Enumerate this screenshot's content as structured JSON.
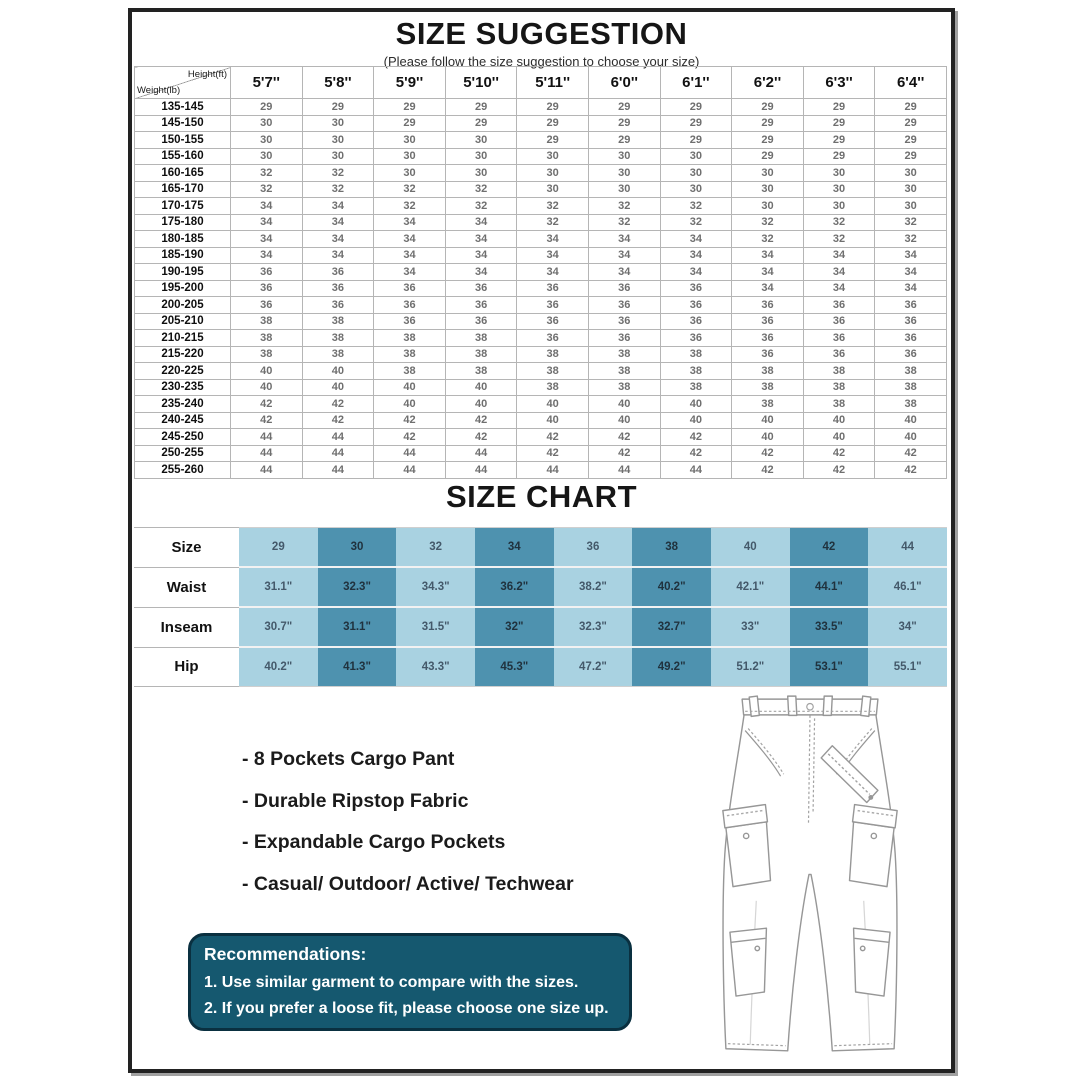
{
  "page": {
    "title": "SIZE SUGGESTION",
    "subtitle": "(Please follow the size suggestion to choose your size)"
  },
  "size_suggestion": {
    "corner_top": "Height(ft)",
    "corner_bottom": "Weight(lb)",
    "height_columns": [
      "5'7''",
      "5'8''",
      "5'9''",
      "5'10''",
      "5'11''",
      "6'0''",
      "6'1''",
      "6'2''",
      "6'3''",
      "6'4''"
    ],
    "rows": [
      {
        "weight": "135-145",
        "sizes": [
          29,
          29,
          29,
          29,
          29,
          29,
          29,
          29,
          29,
          29
        ]
      },
      {
        "weight": "145-150",
        "sizes": [
          30,
          30,
          29,
          29,
          29,
          29,
          29,
          29,
          29,
          29
        ]
      },
      {
        "weight": "150-155",
        "sizes": [
          30,
          30,
          30,
          30,
          29,
          29,
          29,
          29,
          29,
          29
        ]
      },
      {
        "weight": "155-160",
        "sizes": [
          30,
          30,
          30,
          30,
          30,
          30,
          30,
          29,
          29,
          29
        ]
      },
      {
        "weight": "160-165",
        "sizes": [
          32,
          32,
          30,
          30,
          30,
          30,
          30,
          30,
          30,
          30
        ]
      },
      {
        "weight": "165-170",
        "sizes": [
          32,
          32,
          32,
          32,
          30,
          30,
          30,
          30,
          30,
          30
        ]
      },
      {
        "weight": "170-175",
        "sizes": [
          34,
          34,
          32,
          32,
          32,
          32,
          32,
          30,
          30,
          30
        ]
      },
      {
        "weight": "175-180",
        "sizes": [
          34,
          34,
          34,
          34,
          32,
          32,
          32,
          32,
          32,
          32
        ]
      },
      {
        "weight": "180-185",
        "sizes": [
          34,
          34,
          34,
          34,
          34,
          34,
          34,
          32,
          32,
          32
        ]
      },
      {
        "weight": "185-190",
        "sizes": [
          34,
          34,
          34,
          34,
          34,
          34,
          34,
          34,
          34,
          34
        ]
      },
      {
        "weight": "190-195",
        "sizes": [
          36,
          36,
          34,
          34,
          34,
          34,
          34,
          34,
          34,
          34
        ]
      },
      {
        "weight": "195-200",
        "sizes": [
          36,
          36,
          36,
          36,
          36,
          36,
          36,
          34,
          34,
          34
        ]
      },
      {
        "weight": "200-205",
        "sizes": [
          36,
          36,
          36,
          36,
          36,
          36,
          36,
          36,
          36,
          36
        ]
      },
      {
        "weight": "205-210",
        "sizes": [
          38,
          38,
          36,
          36,
          36,
          36,
          36,
          36,
          36,
          36
        ]
      },
      {
        "weight": "210-215",
        "sizes": [
          38,
          38,
          38,
          38,
          36,
          36,
          36,
          36,
          36,
          36
        ]
      },
      {
        "weight": "215-220",
        "sizes": [
          38,
          38,
          38,
          38,
          38,
          38,
          38,
          36,
          36,
          36
        ]
      },
      {
        "weight": "220-225",
        "sizes": [
          40,
          40,
          38,
          38,
          38,
          38,
          38,
          38,
          38,
          38
        ]
      },
      {
        "weight": "230-235",
        "sizes": [
          40,
          40,
          40,
          40,
          38,
          38,
          38,
          38,
          38,
          38
        ]
      },
      {
        "weight": "235-240",
        "sizes": [
          42,
          42,
          40,
          40,
          40,
          40,
          40,
          38,
          38,
          38
        ]
      },
      {
        "weight": "240-245",
        "sizes": [
          42,
          42,
          42,
          42,
          40,
          40,
          40,
          40,
          40,
          40
        ]
      },
      {
        "weight": "245-250",
        "sizes": [
          44,
          44,
          42,
          42,
          42,
          42,
          42,
          40,
          40,
          40
        ]
      },
      {
        "weight": "250-255",
        "sizes": [
          44,
          44,
          44,
          44,
          42,
          42,
          42,
          42,
          42,
          42
        ]
      },
      {
        "weight": "255-260",
        "sizes": [
          44,
          44,
          44,
          44,
          44,
          44,
          44,
          42,
          42,
          42
        ]
      }
    ]
  },
  "size_chart": {
    "title": "SIZE CHART",
    "rows": [
      {
        "label": "Size",
        "values": [
          "29",
          "30",
          "32",
          "34",
          "36",
          "38",
          "40",
          "42",
          "44"
        ]
      },
      {
        "label": "Waist",
        "values": [
          "31.1\"",
          "32.3\"",
          "34.3\"",
          "36.2\"",
          "38.2\"",
          "40.2\"",
          "42.1\"",
          "44.1\"",
          "46.1\""
        ]
      },
      {
        "label": "Inseam",
        "values": [
          "30.7\"",
          "31.1\"",
          "31.5\"",
          "32\"",
          "32.3\"",
          "32.7\"",
          "33\"",
          "33.5\"",
          "34\""
        ]
      },
      {
        "label": "Hip",
        "values": [
          "40.2\"",
          "41.3\"",
          "43.3\"",
          "45.3\"",
          "47.2\"",
          "49.2\"",
          "51.2\"",
          "53.1\"",
          "55.1\""
        ]
      }
    ],
    "colors": {
      "light_cell": "#a9d2e1",
      "dark_cell": "#4e92af"
    }
  },
  "features": [
    "- 8 Pockets Cargo Pant",
    "- Durable Ripstop Fabric",
    "- Expandable Cargo Pockets",
    "- Casual/ Outdoor/ Active/ Techwear"
  ],
  "recommendations": {
    "title": "Recommendations:",
    "items": [
      "1. Use similar garment to compare with the sizes.",
      "2. If you prefer a loose fit, please choose one size up."
    ],
    "bg_color": "#15586f"
  },
  "illustration": {
    "name": "cargo-pants-line-drawing"
  }
}
